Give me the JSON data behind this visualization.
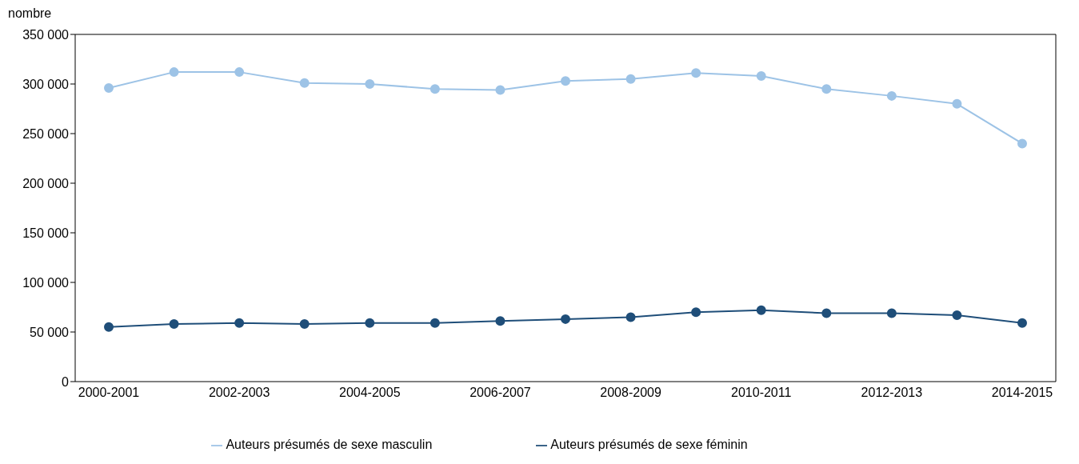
{
  "chart_data": {
    "type": "line",
    "ylabel": "nombre",
    "categories": [
      "2000-2001",
      null,
      "2002-2003",
      null,
      "2004-2005",
      null,
      "2006-2007",
      null,
      "2008-2009",
      null,
      "2010-2011",
      null,
      "2012-2013",
      null,
      "2014-2015"
    ],
    "series": [
      {
        "name": "Auteurs présumés de sexe masculin",
        "color": "#9dc3e6",
        "values": [
          296000,
          312000,
          312000,
          301000,
          300000,
          295000,
          294000,
          303000,
          305000,
          311000,
          308000,
          295000,
          288000,
          280000,
          240000
        ]
      },
      {
        "name": "Auteurs présumés de sexe féminin",
        "color": "#1f4e79",
        "values": [
          55000,
          58000,
          59000,
          58000,
          59000,
          59000,
          61000,
          63000,
          65000,
          70000,
          72000,
          69000,
          69000,
          67000,
          59000
        ]
      }
    ],
    "ylim": [
      0,
      350000
    ],
    "yticks": [
      0,
      {
        "value": 50000,
        "label": "50 000"
      },
      {
        "value": 100000,
        "label": "100 000"
      },
      {
        "value": 150000,
        "label": "150 000"
      },
      {
        "value": 200000,
        "label": "200 000"
      },
      {
        "value": 250000,
        "label": "250 000"
      },
      {
        "value": 300000,
        "label": "300 000"
      },
      {
        "value": 350000,
        "label": "350 000"
      }
    ],
    "grid": false,
    "legend": "bottom",
    "marker": "circle",
    "line_style": "solid"
  }
}
